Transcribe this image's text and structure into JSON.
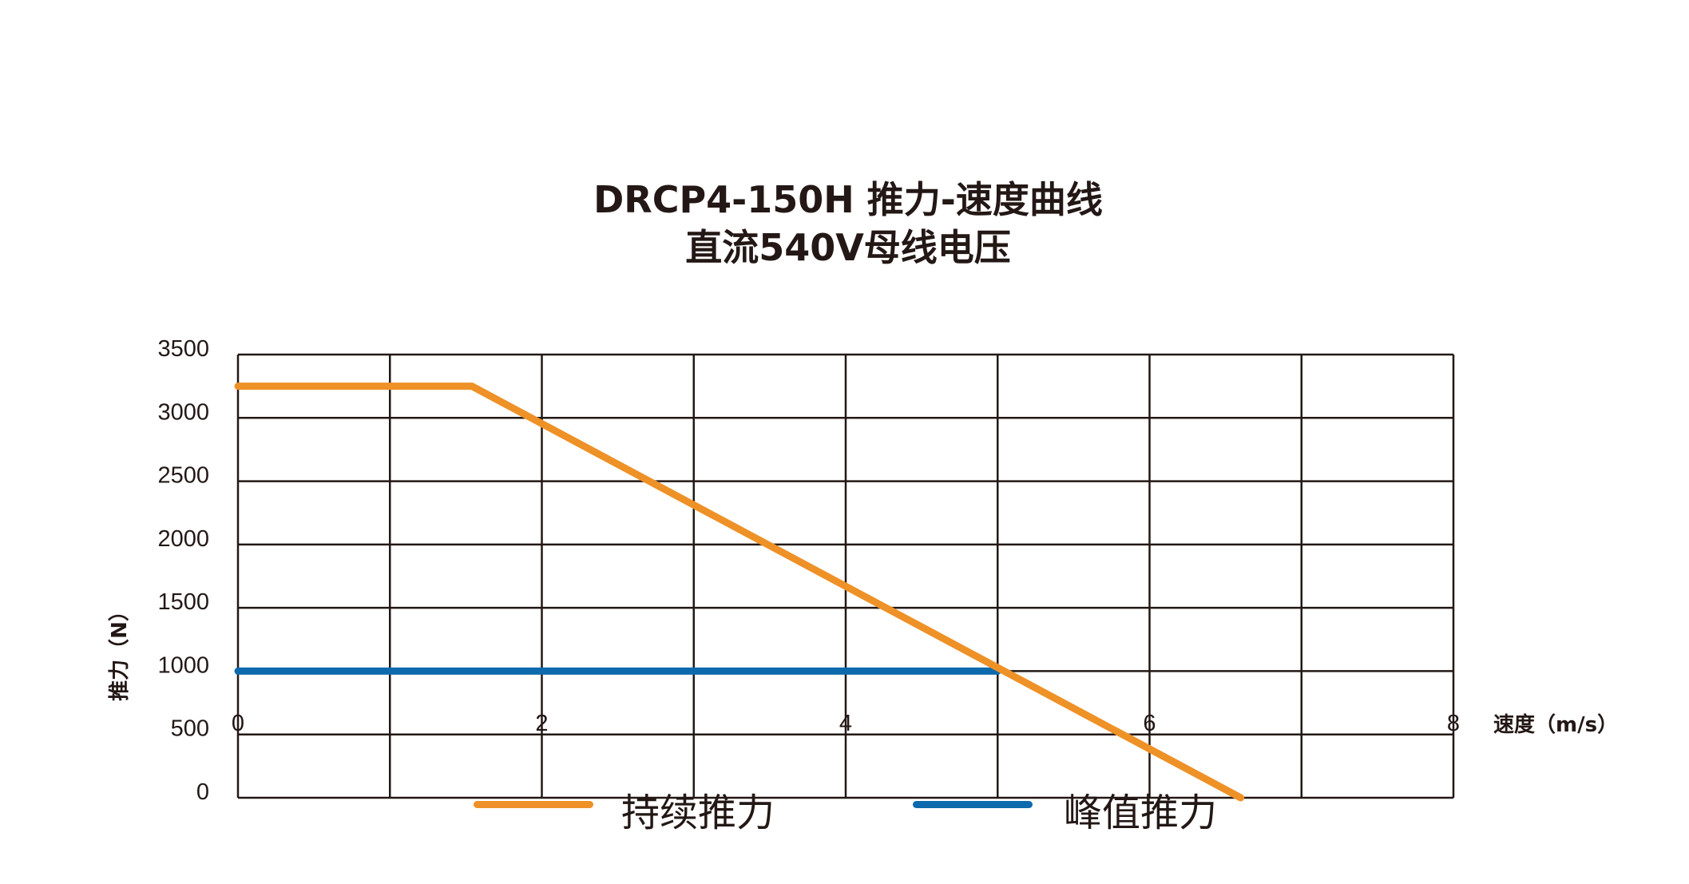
{
  "chart_data": {
    "type": "line",
    "title": "DRCP4-150H 推力-速度曲线",
    "subtitle": "直流540V母线电压",
    "xlabel": "速度（m/s）",
    "ylabel": "推力（N）",
    "xlim": [
      0,
      8
    ],
    "ylim": [
      0,
      3500
    ],
    "xticks": [
      0,
      2,
      4,
      6,
      8
    ],
    "yticks": [
      0,
      500,
      1000,
      1500,
      2000,
      2500,
      3000,
      3500
    ],
    "x_grid_step": 1,
    "grid": true,
    "legend_position": "bottom",
    "series": [
      {
        "name": "持续推力",
        "color": "#ee9127",
        "points": [
          [
            0,
            3250
          ],
          [
            1.54,
            3250
          ],
          [
            6.6,
            0
          ]
        ]
      },
      {
        "name": "峰值推力",
        "color": "#0d6aad",
        "points": [
          [
            0,
            1000
          ],
          [
            5.0,
            1000
          ]
        ]
      }
    ]
  }
}
